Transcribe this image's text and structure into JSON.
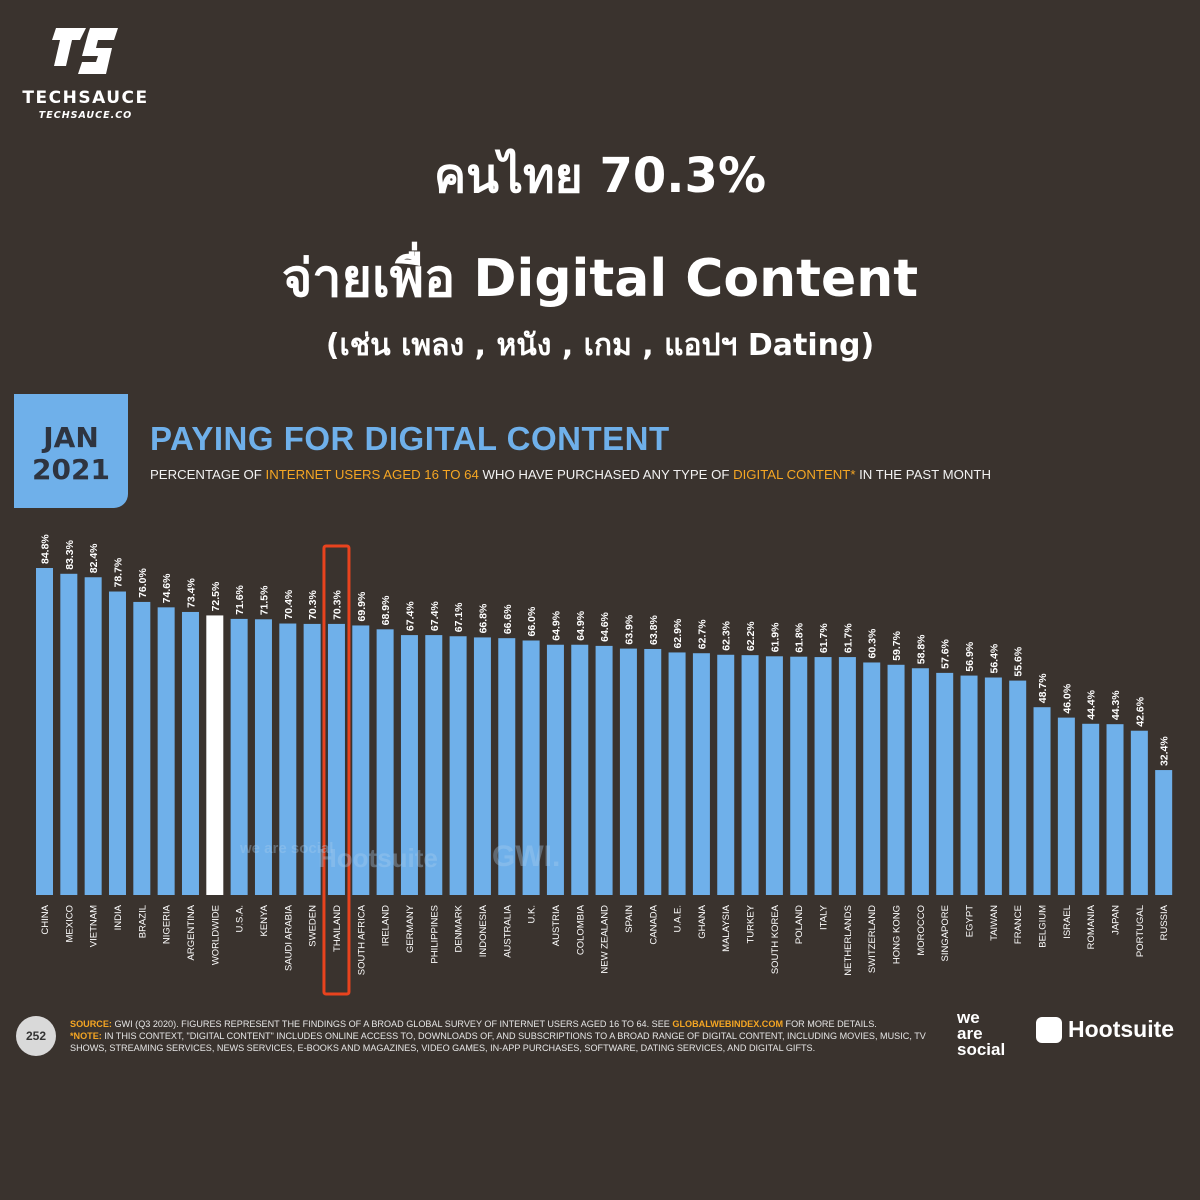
{
  "logo": {
    "brand": "TECHSAUCE",
    "site": "TECHSAUCE.CO",
    "icon": "techsauce-ts-logo"
  },
  "headline": {
    "line1": "คนไทย 70.3%",
    "line2": "จ่ายเพื่อ Digital Content",
    "line3": "(เช่น เพลง , หนัง , เกม , แอปฯ Dating)"
  },
  "date_box": {
    "month": "JAN",
    "year": "2021"
  },
  "subtitle": {
    "p1": "PERCENTAGE OF ",
    "h1": "INTERNET USERS AGED 16 TO 64",
    "p2": " WHO HAVE PURCHASED ANY TYPE OF ",
    "h2": "DIGITAL CONTENT*",
    "p3": " IN THE PAST MONTH"
  },
  "colors": {
    "bar": "#6fb0ea",
    "worldwide": "#ffffff",
    "highlight": "#e8431e",
    "background": "#3a332e"
  },
  "highlighted_category": "THAILAND",
  "watermarks": {
    "weare": "we are social",
    "hootsuite": "Hootsuite",
    "gwi": "GWI."
  },
  "footer": {
    "page": "252",
    "source_label": "SOURCE:",
    "source_text": " GWI (Q3 2020). FIGURES REPRESENT THE FINDINGS OF A BROAD GLOBAL SURVEY OF INTERNET USERS AGED 16 TO 64. SEE ",
    "source_link": "GLOBALWEBINDEX.COM",
    "source_end": " FOR MORE DETAILS.",
    "note_label": "*NOTE:",
    "note_text": " IN THIS CONTEXT, \"DIGITAL CONTENT\" INCLUDES ONLINE ACCESS TO, DOWNLOADS OF, AND SUBSCRIPTIONS TO A BROAD RANGE OF DIGITAL CONTENT, INCLUDING MOVIES, MUSIC, TV SHOWS, STREAMING SERVICES, NEWS SERVICES, E-BOOKS AND MAGAZINES, VIDEO GAMES, IN-APP PURCHASES, SOFTWARE, DATING SERVICES, AND DIGITAL GIFTS.",
    "weare_line1": "we",
    "weare_line2": "are",
    "weare_line3": "social",
    "hootsuite": "Hootsuite"
  },
  "chart_data": {
    "type": "bar",
    "title": "PAYING FOR DIGITAL CONTENT",
    "xlabel": "",
    "ylabel": "",
    "ylim": [
      0,
      100
    ],
    "grid": false,
    "categories": [
      "CHINA",
      "MEXICO",
      "VIETNAM",
      "INDIA",
      "BRAZIL",
      "NIGERIA",
      "ARGENTINA",
      "WORLDWIDE",
      "U.S.A.",
      "KENYA",
      "SAUDI ARABIA",
      "SWEDEN",
      "THAILAND",
      "SOUTH AFRICA",
      "IRELAND",
      "GERMANY",
      "PHILIPPINES",
      "DENMARK",
      "INDONESIA",
      "AUSTRALIA",
      "U.K.",
      "AUSTRIA",
      "COLOMBIA",
      "NEW ZEALAND",
      "SPAIN",
      "CANADA",
      "U.A.E.",
      "GHANA",
      "MALAYSIA",
      "TURKEY",
      "SOUTH KOREA",
      "POLAND",
      "ITALY",
      "NETHERLANDS",
      "SWITZERLAND",
      "HONG KONG",
      "MOROCCO",
      "SINGAPORE",
      "EGYPT",
      "TAIWAN",
      "FRANCE",
      "BELGIUM",
      "ISRAEL",
      "ROMANIA",
      "JAPAN",
      "PORTUGAL",
      "RUSSIA"
    ],
    "values": [
      84.8,
      83.3,
      82.4,
      78.7,
      76.0,
      74.6,
      73.4,
      72.5,
      71.6,
      71.5,
      70.4,
      70.3,
      70.3,
      69.9,
      68.9,
      67.4,
      67.4,
      67.1,
      66.8,
      66.6,
      66.0,
      64.9,
      64.9,
      64.6,
      63.9,
      63.8,
      62.9,
      62.7,
      62.3,
      62.2,
      61.9,
      61.8,
      61.7,
      61.7,
      60.3,
      59.7,
      58.8,
      57.6,
      56.9,
      56.4,
      55.6,
      48.7,
      46.0,
      44.4,
      44.3,
      42.6,
      32.4
    ],
    "labels": [
      "84.8%",
      "83.3%",
      "82.4%",
      "78.7%",
      "76.0%",
      "74.6%",
      "73.4%",
      "72.5%",
      "71.6%",
      "71.5%",
      "70.4%",
      "70.3%",
      "70.3%",
      "69.9%",
      "68.9%",
      "67.4%",
      "67.4%",
      "67.1%",
      "66.8%",
      "66.6%",
      "66.0%",
      "64.9%",
      "64.9%",
      "64.6%",
      "63.9%",
      "63.8%",
      "62.9%",
      "62.7%",
      "62.3%",
      "62.2%",
      "61.9%",
      "61.8%",
      "61.7%",
      "61.7%",
      "60.3%",
      "59.7%",
      "58.8%",
      "57.6%",
      "56.9%",
      "56.4%",
      "55.6%",
      "48.7%",
      "46.0%",
      "44.4%",
      "44.3%",
      "42.6%",
      "32.4%"
    ]
  }
}
